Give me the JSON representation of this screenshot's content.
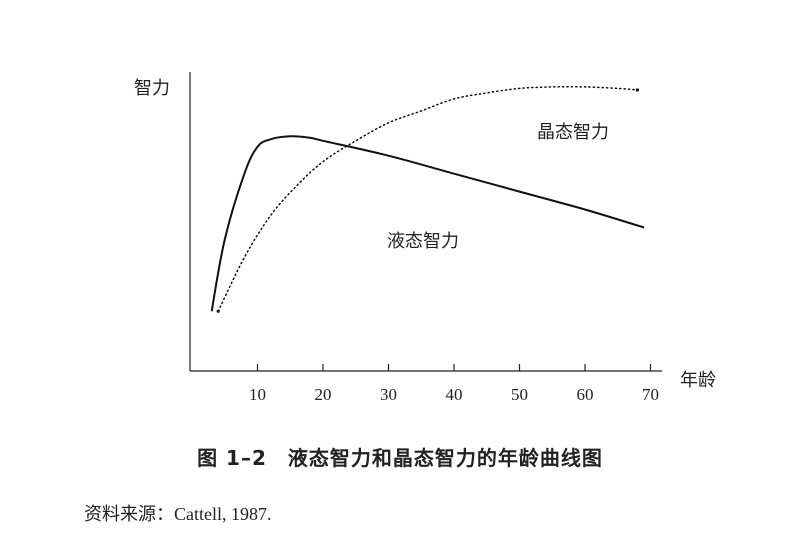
{
  "chart_data": {
    "type": "line",
    "ylabel": "智力",
    "xlabel": "年龄",
    "xticks": [
      10,
      20,
      30,
      40,
      50,
      60,
      70
    ],
    "xlim": [
      0,
      70
    ],
    "grid": false,
    "series": [
      {
        "name": "液态智力",
        "style": "solid",
        "x": [
          3,
          5,
          8,
          10,
          12,
          15,
          18,
          20,
          30,
          40,
          50,
          60,
          69
        ],
        "y": [
          0.2,
          0.44,
          0.66,
          0.75,
          0.775,
          0.785,
          0.78,
          0.77,
          0.72,
          0.66,
          0.6,
          0.54,
          0.48
        ]
      },
      {
        "name": "晶态智力",
        "style": "dotted",
        "x": [
          4,
          8,
          12,
          16,
          20,
          25,
          30,
          35,
          40,
          45,
          50,
          55,
          60,
          65,
          68
        ],
        "y": [
          0.2,
          0.38,
          0.52,
          0.62,
          0.7,
          0.77,
          0.83,
          0.87,
          0.91,
          0.93,
          0.945,
          0.95,
          0.95,
          0.945,
          0.94
        ]
      }
    ]
  },
  "caption": "图 1–2　液态智力和晶态智力的年龄曲线图",
  "source": "资料来源：Cattell, 1987."
}
